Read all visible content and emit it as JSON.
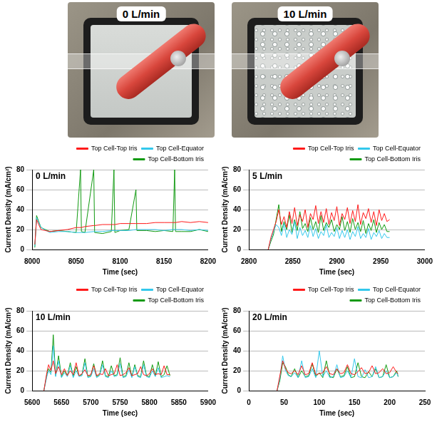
{
  "photos": [
    {
      "label": "0 L/min"
    },
    {
      "label": "10 L/min"
    }
  ],
  "chart_data": [
    {
      "type": "line",
      "title": "0 L/min",
      "x_label": "Time (sec)",
      "y_label": "Current Density (mA/cm²)",
      "xlim": [
        8000,
        8200
      ],
      "xticks": [
        8000,
        8050,
        8100,
        8150,
        8200
      ],
      "ylim": [
        0,
        80
      ],
      "yticks": [
        0,
        20,
        40,
        60,
        80
      ],
      "grid": true,
      "legend": "top",
      "x": [
        8003,
        8005,
        8010,
        8020,
        8030,
        8040,
        8050,
        8055,
        8056,
        8060,
        8070,
        8071,
        8080,
        8090,
        8093,
        8094,
        8100,
        8110,
        8118,
        8119,
        8130,
        8140,
        8150,
        8160,
        8162,
        8163,
        8170,
        8180,
        8190,
        8200
      ],
      "series": [
        {
          "name": "Top Cell-Top Iris",
          "color": "#ff1a1a",
          "values": [
            5,
            30,
            20,
            18,
            19,
            20,
            22,
            22,
            22,
            23,
            24,
            24,
            25,
            25,
            25,
            25,
            26,
            26,
            26,
            26,
            26,
            27,
            27,
            27,
            27,
            27,
            28,
            27,
            28,
            27
          ]
        },
        {
          "name": "Top Cell-Equator",
          "color": "#33c8ec",
          "values": [
            3,
            32,
            22,
            17,
            18,
            18,
            17,
            17,
            17,
            17,
            18,
            18,
            18,
            19,
            19,
            19,
            19,
            19,
            20,
            20,
            20,
            20,
            19,
            20,
            20,
            20,
            20,
            19,
            20,
            19
          ]
        },
        {
          "name": "Top Cell-Bottom Iris",
          "color": "#119a11",
          "values": [
            2,
            34,
            22,
            18,
            19,
            18,
            17,
            80,
            18,
            17,
            80,
            17,
            16,
            18,
            80,
            17,
            19,
            20,
            60,
            19,
            19,
            18,
            19,
            18,
            80,
            18,
            18,
            18,
            20,
            18
          ]
        }
      ]
    },
    {
      "type": "line",
      "title": "5 L/min",
      "x_label": "Time (sec)",
      "y_label": "Current Density (mA/cm²)",
      "xlim": [
        2800,
        3000
      ],
      "xticks": [
        2800,
        2850,
        2900,
        2950,
        3000
      ],
      "ylim": [
        0,
        80
      ],
      "yticks": [
        0,
        20,
        40,
        60,
        80
      ],
      "grid": true,
      "legend": "top",
      "x": [
        2822,
        2825,
        2828,
        2831,
        2834,
        2837,
        2840,
        2843,
        2846,
        2849,
        2852,
        2855,
        2858,
        2861,
        2864,
        2867,
        2870,
        2873,
        2876,
        2879,
        2882,
        2885,
        2888,
        2891,
        2894,
        2897,
        2900,
        2903,
        2906,
        2909,
        2912,
        2915,
        2918,
        2921,
        2924,
        2927,
        2930,
        2933,
        2936,
        2939,
        2942,
        2945,
        2948,
        2951,
        2954,
        2957,
        2960
      ],
      "series": [
        {
          "name": "Top Cell-Top Iris",
          "color": "#ff1a1a",
          "values": [
            0,
            12,
            20,
            28,
            40,
            25,
            33,
            22,
            38,
            26,
            42,
            24,
            35,
            28,
            40,
            22,
            36,
            30,
            44,
            26,
            38,
            27,
            41,
            25,
            37,
            29,
            43,
            24,
            36,
            30,
            42,
            26,
            39,
            28,
            45,
            25,
            37,
            31,
            41,
            27,
            38,
            24,
            40,
            29,
            36,
            28,
            30
          ]
        },
        {
          "name": "Top Cell-Equator",
          "color": "#33c8ec",
          "values": [
            0,
            10,
            18,
            25,
            22,
            14,
            26,
            12,
            20,
            15,
            28,
            11,
            22,
            14,
            19,
            12,
            24,
            13,
            21,
            11,
            18,
            14,
            25,
            12,
            17,
            13,
            22,
            11,
            19,
            12,
            20,
            10,
            18,
            13,
            23,
            11,
            16,
            12,
            21,
            10,
            17,
            13,
            19,
            11,
            16,
            12,
            12
          ]
        },
        {
          "name": "Top Cell-Bottom Iris",
          "color": "#119a11",
          "values": [
            0,
            8,
            15,
            30,
            45,
            18,
            28,
            20,
            35,
            17,
            30,
            19,
            38,
            21,
            26,
            18,
            32,
            20,
            28,
            17,
            34,
            19,
            27,
            22,
            30,
            18,
            25,
            20,
            33,
            19,
            28,
            17,
            31,
            20,
            27,
            18,
            29,
            16,
            26,
            19,
            30,
            17,
            27,
            20,
            25,
            18,
            18
          ]
        }
      ]
    },
    {
      "type": "line",
      "title": "10 L/min",
      "x_label": "Time (sec)",
      "y_label": "Current Density (mA/cm²)",
      "xlim": [
        5600,
        5900
      ],
      "xticks": [
        5600,
        5650,
        5700,
        5750,
        5800,
        5850,
        5900
      ],
      "ylim": [
        0,
        80
      ],
      "yticks": [
        0,
        20,
        40,
        60,
        80
      ],
      "grid": true,
      "legend": "top",
      "x": [
        5620,
        5625,
        5628,
        5632,
        5636,
        5640,
        5645,
        5650,
        5655,
        5660,
        5665,
        5670,
        5675,
        5680,
        5685,
        5690,
        5695,
        5700,
        5705,
        5710,
        5715,
        5720,
        5725,
        5730,
        5735,
        5740,
        5745,
        5750,
        5755,
        5760,
        5765,
        5770,
        5775,
        5780,
        5785,
        5790,
        5795,
        5800,
        5805,
        5810,
        5815,
        5820,
        5825,
        5830,
        5835
      ],
      "series": [
        {
          "name": "Top Cell-Top Iris",
          "color": "#ff1a1a",
          "values": [
            0,
            18,
            26,
            20,
            30,
            17,
            24,
            16,
            22,
            15,
            20,
            16,
            28,
            15,
            17,
            21,
            15,
            16,
            25,
            15,
            17,
            16,
            22,
            15,
            16,
            17,
            26,
            15,
            16,
            18,
            23,
            15,
            16,
            17,
            24,
            16,
            15,
            17,
            22,
            16,
            17,
            16,
            25,
            16,
            16
          ]
        },
        {
          "name": "Top Cell-Equator",
          "color": "#33c8ec",
          "values": [
            0,
            14,
            20,
            16,
            45,
            14,
            30,
            13,
            18,
            14,
            25,
            13,
            20,
            14,
            15,
            28,
            13,
            14,
            22,
            13,
            15,
            26,
            14,
            13,
            20,
            14,
            15,
            27,
            13,
            14,
            21,
            13,
            24,
            14,
            13,
            26,
            14,
            13,
            20,
            14,
            23,
            13,
            14,
            15,
            14
          ]
        },
        {
          "name": "Top Cell-Bottom Iris",
          "color": "#119a11",
          "values": [
            0,
            16,
            22,
            18,
            56,
            15,
            35,
            14,
            20,
            15,
            28,
            14,
            24,
            15,
            16,
            32,
            14,
            15,
            27,
            14,
            16,
            30,
            15,
            14,
            25,
            15,
            16,
            33,
            14,
            15,
            28,
            14,
            26,
            15,
            14,
            30,
            15,
            14,
            26,
            15,
            29,
            14,
            16,
            25,
            15
          ]
        }
      ]
    },
    {
      "type": "line",
      "title": "20 L/min",
      "x_label": "Time (sec)",
      "y_label": "Current Density (mA/cm²)",
      "xlim": [
        0,
        250
      ],
      "xticks": [
        0,
        50,
        100,
        150,
        200,
        250
      ],
      "ylim": [
        0,
        80
      ],
      "yticks": [
        0,
        20,
        40,
        60,
        80
      ],
      "grid": true,
      "legend": "top",
      "x": [
        40,
        44,
        48,
        52,
        56,
        60,
        65,
        70,
        75,
        80,
        85,
        90,
        95,
        100,
        105,
        110,
        115,
        120,
        125,
        130,
        135,
        140,
        145,
        150,
        155,
        160,
        165,
        170,
        175,
        180,
        185,
        190,
        195,
        200,
        205,
        210,
        212
      ],
      "series": [
        {
          "name": "Top Cell-Top Iris",
          "color": "#ff1a1a",
          "values": [
            0,
            15,
            30,
            22,
            18,
            17,
            20,
            16,
            25,
            16,
            17,
            28,
            16,
            17,
            18,
            24,
            17,
            16,
            22,
            17,
            18,
            26,
            17,
            16,
            19,
            23,
            17,
            18,
            25,
            17,
            18,
            22,
            17,
            18,
            24,
            18,
            17
          ]
        },
        {
          "name": "Top Cell-Equator",
          "color": "#33c8ec",
          "values": [
            0,
            12,
            35,
            20,
            15,
            14,
            18,
            13,
            30,
            13,
            14,
            22,
            13,
            40,
            14,
            20,
            13,
            14,
            26,
            13,
            14,
            20,
            13,
            32,
            14,
            13,
            21,
            13,
            14,
            24,
            13,
            14,
            20,
            13,
            14,
            18,
            14
          ]
        },
        {
          "name": "Top Cell-Bottom Iris",
          "color": "#119a11",
          "values": [
            0,
            10,
            28,
            24,
            16,
            14,
            22,
            13,
            20,
            14,
            15,
            27,
            14,
            18,
            13,
            30,
            14,
            13,
            22,
            14,
            15,
            24,
            13,
            14,
            28,
            14,
            13,
            19,
            14,
            22,
            13,
            14,
            26,
            13,
            14,
            20,
            14
          ]
        }
      ]
    }
  ]
}
